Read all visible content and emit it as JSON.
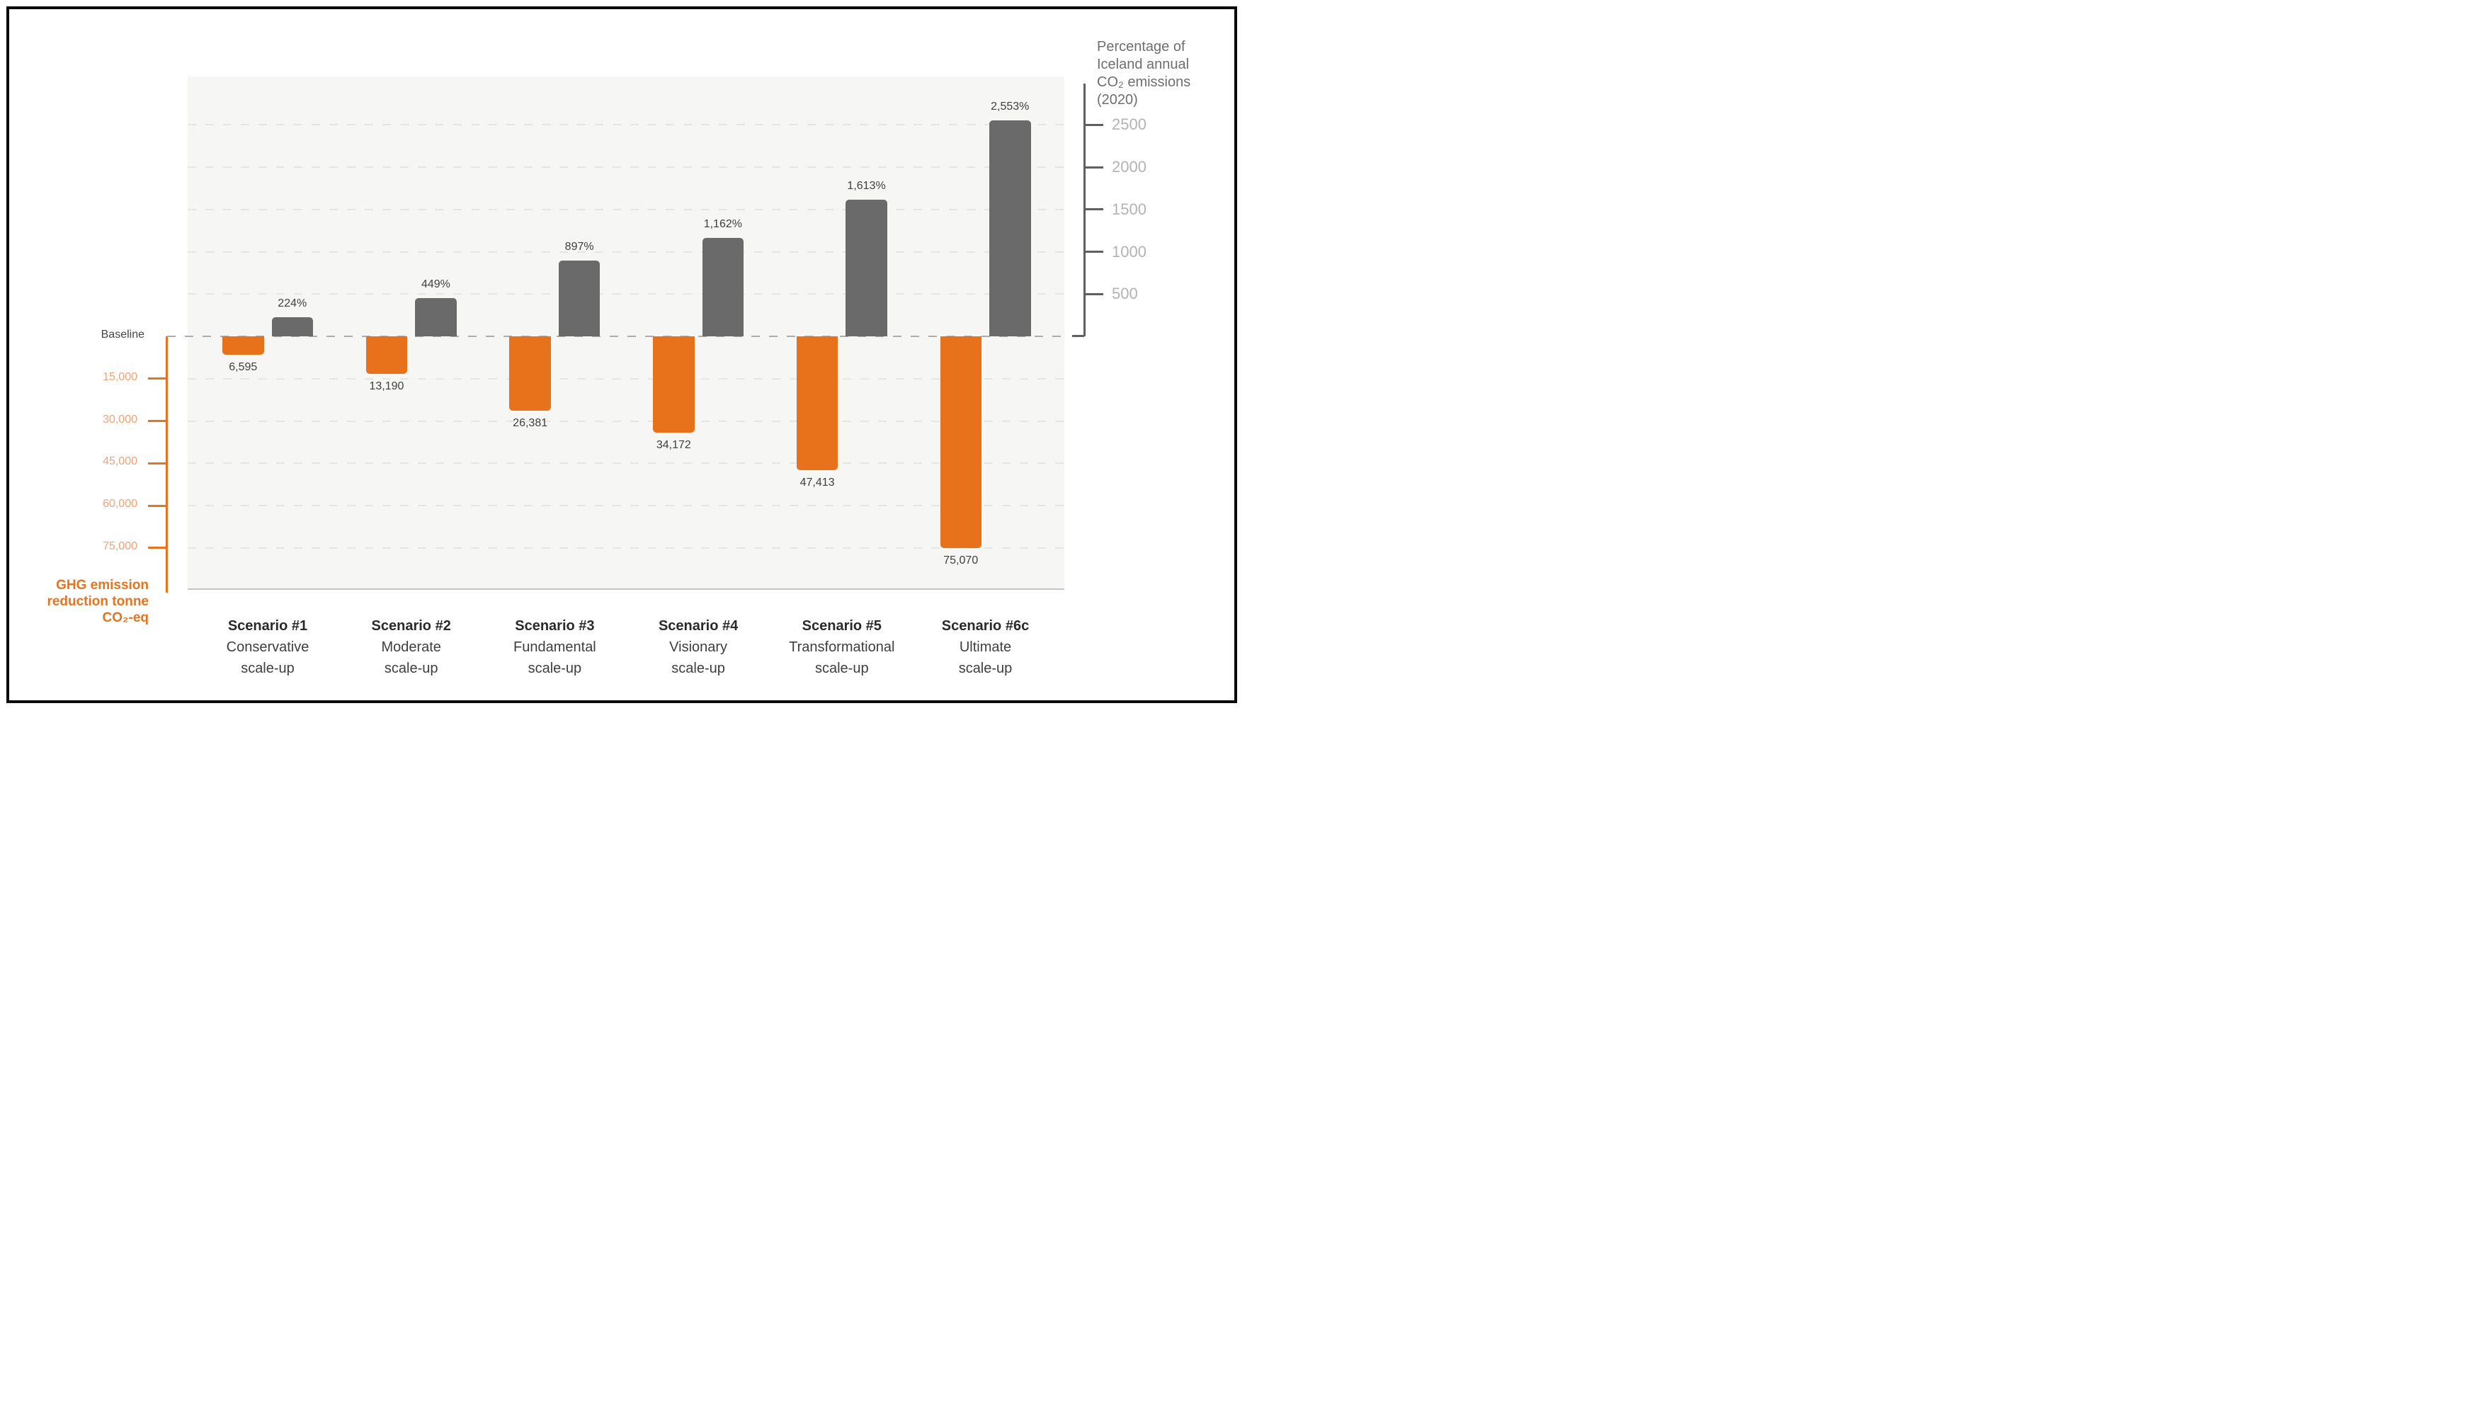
{
  "chart_data": {
    "type": "bar",
    "orientation": "diverging-vertical",
    "categories": [
      {
        "name_lines": [
          "Scenario #1",
          "Conservative",
          "scale-up"
        ]
      },
      {
        "name_lines": [
          "Scenario #2",
          "Moderate",
          "scale-up"
        ]
      },
      {
        "name_lines": [
          "Scenario #3",
          "Fundamental",
          "scale-up"
        ]
      },
      {
        "name_lines": [
          "Scenario #4",
          "Visionary",
          "scale-up"
        ]
      },
      {
        "name_lines": [
          "Scenario #5",
          "Transformational",
          "scale-up"
        ]
      },
      {
        "name_lines": [
          "Scenario #6c",
          "Ultimate",
          "scale-up"
        ]
      }
    ],
    "series": [
      {
        "name": "GHG emission reduction tonne CO₂-eq",
        "direction": "down",
        "color": "#E8721B",
        "values": [
          6595,
          13190,
          26381,
          34172,
          47413,
          75070
        ],
        "labels": [
          "6,595",
          "13,190",
          "26,381",
          "34,172",
          "47,413",
          "75,070"
        ]
      },
      {
        "name": "Percentage of Iceland annual CO₂ emissions (2020)",
        "direction": "up",
        "color": "#6A6A6A",
        "values": [
          224,
          449,
          897,
          1162,
          1613,
          2553
        ],
        "labels": [
          "224%",
          "449%",
          "897%",
          "1,162%",
          "1,613%",
          "2,553%"
        ]
      }
    ],
    "left_axis": {
      "baseline_label": "Baseline",
      "title_lines": [
        "GHG emission",
        "reduction tonne",
        "CO₂-eq"
      ],
      "ticks": [
        "15,000",
        "30,000",
        "45,000",
        "60,000",
        "75,000"
      ],
      "tick_values": [
        15000,
        30000,
        45000,
        60000,
        75000
      ],
      "units_per_step": 15000,
      "axis_color": "#E8731D",
      "tick_label_color": "#F2A172"
    },
    "right_axis": {
      "title_lines": [
        "Percentage of",
        "Iceland annual",
        "CO₂ emissions",
        "(2020)"
      ],
      "ticks": [
        "500",
        "1000",
        "1500",
        "2000",
        "2500"
      ],
      "tick_values": [
        500,
        1000,
        1500,
        2000,
        2500
      ],
      "units_per_step": 500,
      "axis_color": "#606060",
      "tick_label_color": "#B3B3B3"
    },
    "grid": {
      "dashed": true,
      "baseline_color": "#ACACAC",
      "line_color": "#E5E5E3"
    },
    "plot_background": "#F6F6F4"
  }
}
